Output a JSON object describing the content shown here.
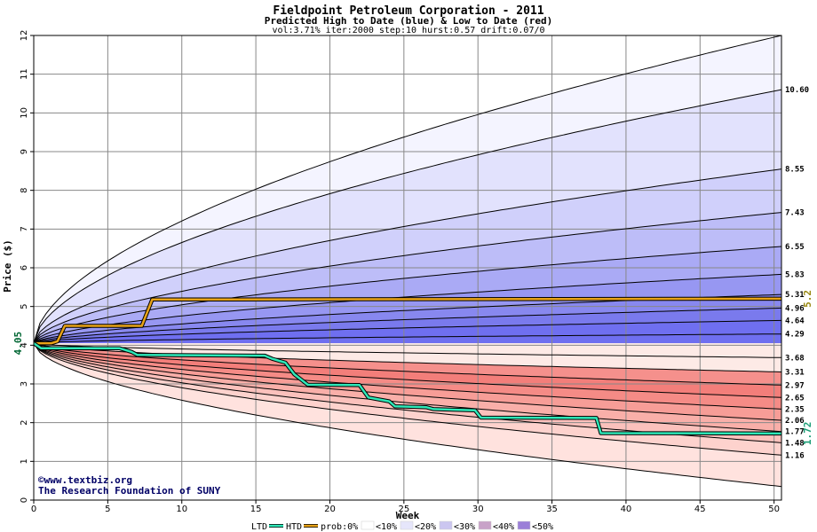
{
  "chart_data": {
    "type": "area",
    "title": "Fieldpoint Petroleum Corporation - 2011",
    "subtitle": "Predicted High to Date (blue) &  Low to Date (red)",
    "params": "vol:3.71% iter:2000 step:10 hurst:0.57 drift:0.07/0",
    "xlabel": "Week",
    "ylabel": "Price ($)",
    "xlim": [
      0,
      50.5
    ],
    "ylim": [
      0,
      12
    ],
    "x_ticks": [
      0,
      5,
      10,
      15,
      20,
      25,
      30,
      35,
      40,
      45,
      50
    ],
    "y_ticks": [
      0,
      1,
      2,
      3,
      4,
      5,
      6,
      7,
      8,
      9,
      10,
      11,
      12
    ],
    "grid": true,
    "start_price": 4.05,
    "start_label": "4.05",
    "high_bands": [
      {
        "final": 10.6,
        "label": "10.60"
      },
      {
        "final": 8.55,
        "label": "8.55"
      },
      {
        "final": 7.43,
        "label": "7.43"
      },
      {
        "final": 6.55,
        "label": "6.55"
      },
      {
        "final": 5.83,
        "label": "5.83"
      },
      {
        "final": 5.31,
        "label": "5.31"
      },
      {
        "final": 4.96,
        "label": "4.96"
      },
      {
        "final": 4.64,
        "label": "4.64"
      },
      {
        "final": 4.29,
        "label": "4.29"
      }
    ],
    "low_bands": [
      {
        "final": 3.68,
        "label": "3.68"
      },
      {
        "final": 3.31,
        "label": "3.31"
      },
      {
        "final": 2.97,
        "label": "2.97"
      },
      {
        "final": 2.65,
        "label": "2.65"
      },
      {
        "final": 2.35,
        "label": "2.35"
      },
      {
        "final": 2.06,
        "label": "2.06"
      },
      {
        "final": 1.77,
        "label": "1.77"
      },
      {
        "final": 1.48,
        "label": "1.48"
      },
      {
        "final": 1.16,
        "label": "1.16"
      }
    ],
    "outer_high_curve_final": 12,
    "outer_low_curve_final": 0.35,
    "htd_series": {
      "name": "HTD",
      "color": "#e8a317",
      "points": [
        [
          0,
          4.05
        ],
        [
          1.2,
          4.05
        ],
        [
          1.6,
          4.1
        ],
        [
          2.1,
          4.5
        ],
        [
          7.3,
          4.5
        ],
        [
          8.0,
          5.18
        ],
        [
          50.5,
          5.2
        ]
      ],
      "final_label": "5.2"
    },
    "ltd_series": {
      "name": "LTD",
      "color": "#2ee8b8",
      "points": [
        [
          0,
          4.05
        ],
        [
          0.5,
          3.92
        ],
        [
          5.8,
          3.92
        ],
        [
          6.6,
          3.83
        ],
        [
          7.0,
          3.75
        ],
        [
          15.6,
          3.73
        ],
        [
          16.1,
          3.65
        ],
        [
          17.0,
          3.55
        ],
        [
          17.6,
          3.25
        ],
        [
          18.5,
          2.98
        ],
        [
          22.0,
          2.97
        ],
        [
          22.6,
          2.65
        ],
        [
          24.0,
          2.55
        ],
        [
          24.4,
          2.42
        ],
        [
          26.5,
          2.4
        ],
        [
          27.0,
          2.35
        ],
        [
          29.8,
          2.32
        ],
        [
          30.2,
          2.13
        ],
        [
          38.0,
          2.12
        ],
        [
          38.3,
          1.73
        ],
        [
          50.5,
          1.72
        ]
      ],
      "final_label": "1.72"
    },
    "colors": {
      "high_fill": [
        "#f4f4ff",
        "#e2e2fd",
        "#d0d0fb",
        "#bdbdf8",
        "#aaaaf5",
        "#9797f2",
        "#8888ef",
        "#7a7aed",
        "#6f6ff0"
      ],
      "low_fill": [
        "#ffe2de",
        "#fdd2cd",
        "#fbc1bc",
        "#f9afa9",
        "#f79d97",
        "#f58b86",
        "#f37e7a",
        "#f5908c",
        "#fdeae6"
      ],
      "start_label": "#006633",
      "htd_label": "#998811",
      "ltd_label": "#1b9e77"
    },
    "credit_lines": [
      "©www.textbiz.org",
      "The Research Foundation of SUNY"
    ],
    "legend": {
      "items": [
        {
          "type": "line",
          "color": "#2ee8b8",
          "label": "LTD"
        },
        {
          "type": "line",
          "color": "#e8a317",
          "label": "HTD"
        },
        {
          "type": "text",
          "label": "prob:0%"
        },
        {
          "type": "swatch",
          "color": "#ffffff",
          "label": "<10%"
        },
        {
          "type": "swatch",
          "color": "#e6e6fb",
          "label": "<20%"
        },
        {
          "type": "swatch",
          "color": "#cbc6f0",
          "label": "<30%"
        },
        {
          "type": "swatch",
          "color": "#c8a2c8",
          "label": "<40%"
        },
        {
          "type": "swatch",
          "color": "#9b7fd8",
          "label": "<50%"
        }
      ]
    }
  }
}
